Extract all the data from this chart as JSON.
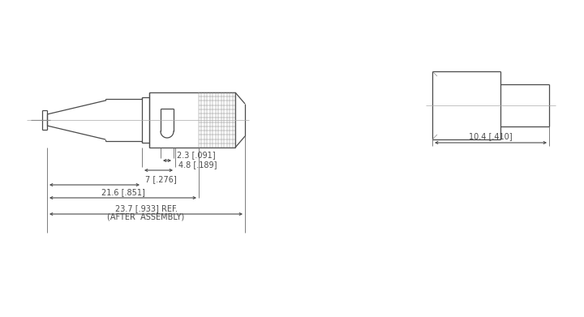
{
  "bg_color": "#ffffff",
  "line_color": "#4a4a4a",
  "dim_color": "#4a4a4a",
  "lw": 0.9,
  "lw_thin": 0.5,
  "fig_w": 7.2,
  "fig_h": 3.91,
  "dims": {
    "d1_label": "2.3 [.091]",
    "d2_label": "4.8 [.189]",
    "d3_label": "7 [.276]",
    "d4_label": "21.6 [.851]",
    "d5_label": "23.7 [.933] REF.",
    "d5_sub": "(AFTER  ASSEMBLY)",
    "d6_label": "10.4 [.410]"
  },
  "font_size": 7.0,
  "font_family": "DejaVu Sans"
}
